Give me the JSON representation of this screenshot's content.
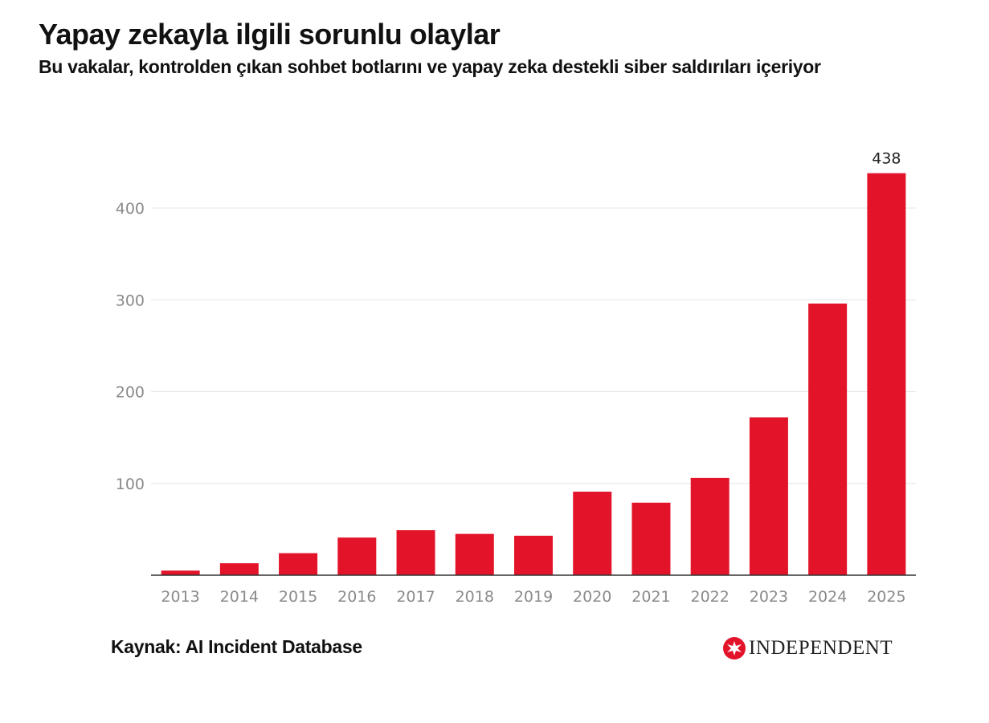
{
  "header": {
    "title": "Yapay zekayla ilgili sorunlu olaylar",
    "subtitle": "Bu vakalar, kontrolden çıkan sohbet botlarını ve yapay zeka destekli siber saldırıları içeriyor"
  },
  "footer": {
    "source": "Kaynak: AI Incident Database",
    "logo_text": "INDEPENDENT"
  },
  "colors": {
    "bar": "#e3142a",
    "grid": "#e6e6e6",
    "axis": "#333333",
    "tick_text": "#8a8a8a"
  },
  "chart_data": {
    "type": "bar",
    "title": "Yapay zekayla ilgili sorunlu olaylar",
    "categories": [
      "2013",
      "2014",
      "2015",
      "2016",
      "2017",
      "2018",
      "2019",
      "2020",
      "2021",
      "2022",
      "2023",
      "2024",
      "2025"
    ],
    "values": [
      5,
      13,
      24,
      41,
      49,
      45,
      43,
      91,
      79,
      106,
      172,
      296,
      438
    ],
    "data_labels": [
      {
        "category": "2025",
        "text": "438"
      }
    ],
    "ylim": [
      0,
      438
    ],
    "yticks": [
      100,
      200,
      300,
      400
    ],
    "grid": true,
    "legend": "none"
  }
}
